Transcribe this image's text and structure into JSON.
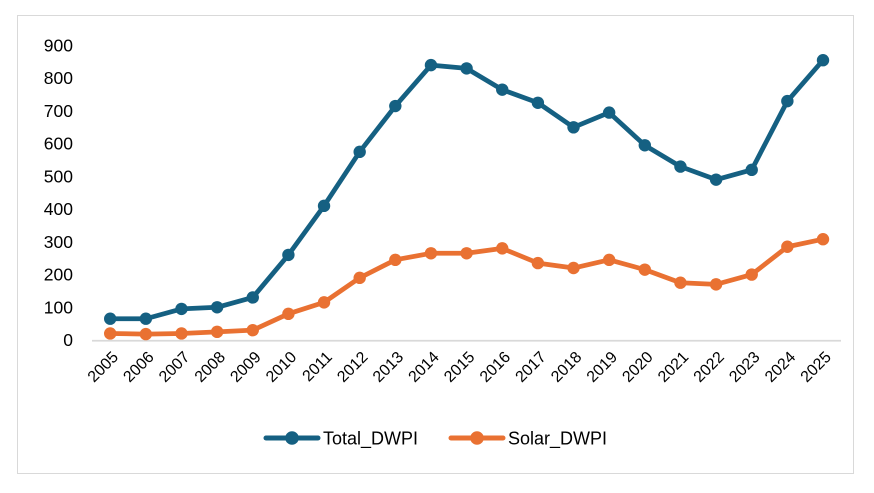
{
  "chart_data": {
    "type": "line",
    "x": [
      2005,
      2006,
      2007,
      2008,
      2009,
      2010,
      2011,
      2012,
      2013,
      2014,
      2015,
      2016,
      2017,
      2018,
      2019,
      2020,
      2021,
      2022,
      2023,
      2024,
      2025
    ],
    "series": [
      {
        "name": "Total_DWPI",
        "color": "#156082",
        "values": [
          65,
          65,
          95,
          100,
          130,
          260,
          410,
          575,
          715,
          840,
          830,
          765,
          725,
          650,
          695,
          595,
          530,
          490,
          520,
          730,
          855
        ]
      },
      {
        "name": "Solar_DWPI",
        "color": "#E97132",
        "values": [
          20,
          18,
          20,
          25,
          30,
          80,
          115,
          190,
          245,
          265,
          265,
          280,
          235,
          220,
          245,
          215,
          175,
          170,
          200,
          285,
          308
        ]
      }
    ],
    "title": "",
    "xlabel": "",
    "ylabel": "",
    "ylim": [
      0,
      900
    ],
    "ytick_step": 100,
    "yticks": [
      0,
      100,
      200,
      300,
      400,
      500,
      600,
      700,
      800,
      900
    ],
    "grid": false,
    "legend_position": "bottom",
    "legend": [
      "Total_DWPI",
      "Solar_DWPI"
    ]
  },
  "styles": {
    "series_total_color": "#156082",
    "series_solar_color": "#E97132",
    "axis_line_color": "#D9D9D9",
    "card_border_color": "#D9D9D9",
    "text_color": "#000000",
    "background_color": "#FFFFFF"
  }
}
